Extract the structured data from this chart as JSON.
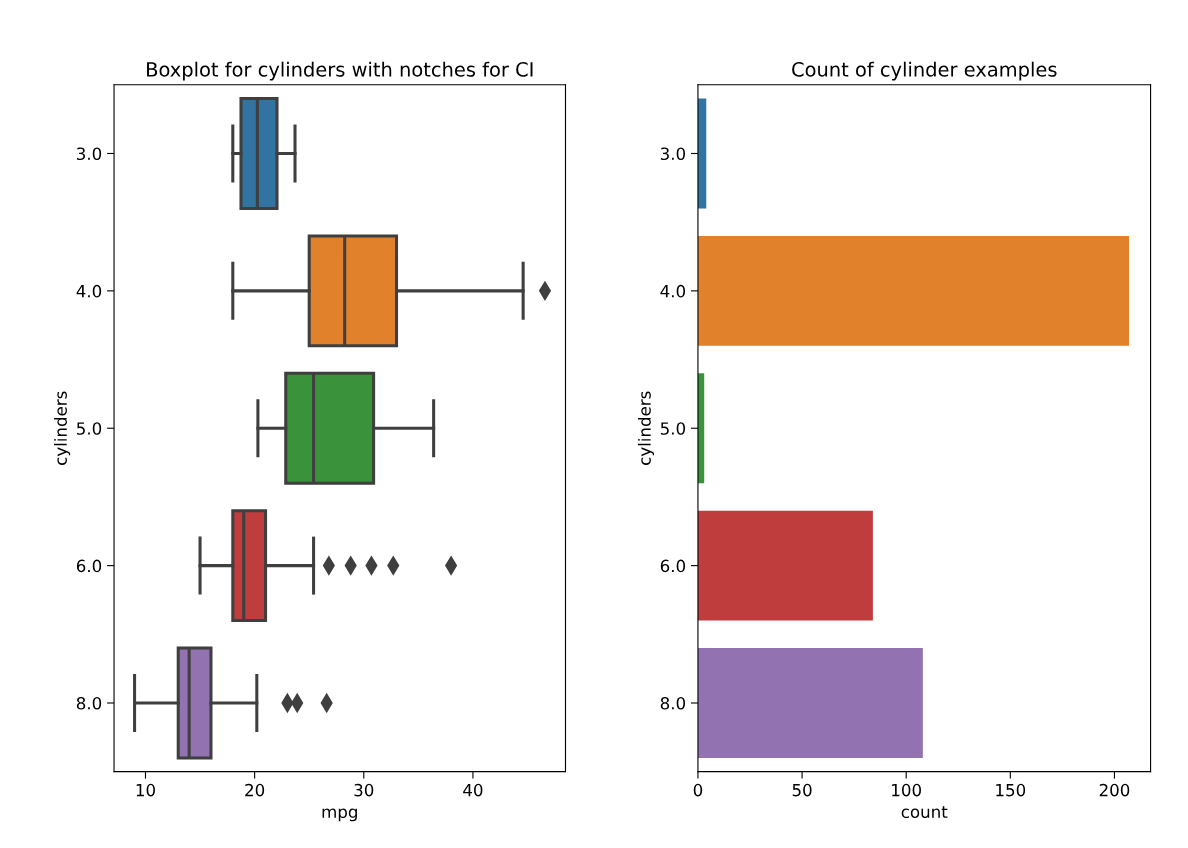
{
  "chart_data": [
    {
      "type": "box",
      "title": "Boxplot for cylinders with notches for CI",
      "orientation": "horizontal",
      "xlabel": "mpg",
      "ylabel": "cylinders",
      "categories": [
        "3.0",
        "4.0",
        "5.0",
        "6.0",
        "8.0"
      ],
      "colors": [
        "#3274a1",
        "#e1812c",
        "#3a923a",
        "#c03d3e",
        "#9372b2"
      ],
      "boxes": [
        {
          "low": 18,
          "q1": 18.75,
          "median": 20.25,
          "q3": 22.05,
          "high": 23.7
        },
        {
          "low": 18,
          "q1": 25,
          "median": 28.25,
          "q3": 33,
          "high": 44.6,
          "outliers": [
            46.6
          ]
        },
        {
          "low": 20.3,
          "q1": 22.85,
          "median": 25.4,
          "q3": 30.9,
          "high": 36.4
        },
        {
          "low": 15,
          "q1": 18,
          "median": 19,
          "q3": 21,
          "high": 25.4,
          "outliers": [
            26.8,
            28.8,
            30.7,
            32.7,
            38
          ]
        },
        {
          "low": 9,
          "q1": 13,
          "median": 14,
          "q3": 16,
          "high": 20.2,
          "outliers": [
            23,
            23.9,
            26.6
          ]
        }
      ],
      "marker": "diamond",
      "xlim": [
        7.12,
        48.48
      ],
      "xticks": [
        10,
        20,
        30,
        40
      ],
      "grid": false
    },
    {
      "type": "bar",
      "title": "Count of cylinder examples",
      "orientation": "horizontal",
      "xlabel": "count",
      "ylabel": "cylinders",
      "categories": [
        "3.0",
        "4.0",
        "5.0",
        "6.0",
        "8.0"
      ],
      "values": [
        4,
        207,
        3,
        84,
        108
      ],
      "colors": [
        "#3274a1",
        "#e1812c",
        "#3a923a",
        "#c03d3e",
        "#9372b2"
      ],
      "xlim": [
        0,
        217.35
      ],
      "xticks": [
        0,
        50,
        100,
        150,
        200
      ],
      "grid": false
    }
  ]
}
